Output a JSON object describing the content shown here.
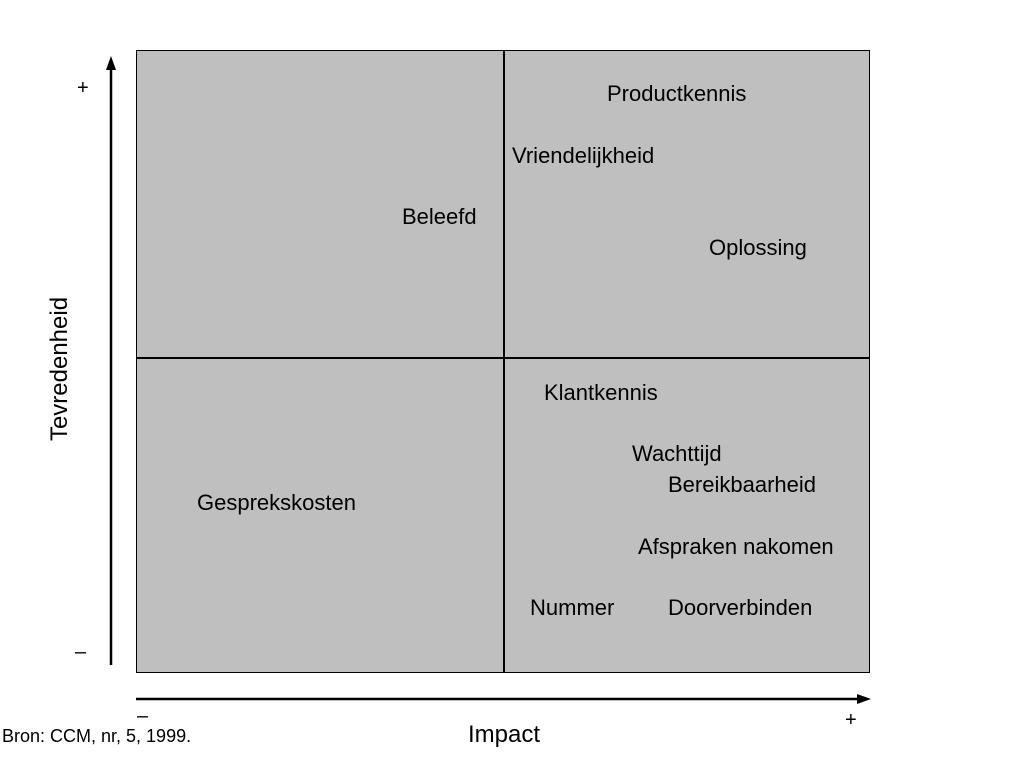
{
  "colors": {
    "quadrant_fill": "#bfbfbf",
    "lines": "#000000"
  },
  "items": {
    "productkennis": "Productkennis",
    "vriendelijkheid": "Vriendelijkheid",
    "beleefd": "Beleefd",
    "oplossing": "Oplossing",
    "klantkennis": "Klantkennis",
    "wachttijd": "Wachttijd",
    "bereikbaarheid": "Bereikbaarheid",
    "gesprekskosten": "Gesprekskosten",
    "afspraken": "Afspraken nakomen",
    "nummer": "Nummer",
    "doorverbinden": "Doorverbinden"
  },
  "axes": {
    "y_label": "Tevredenheid",
    "y_plus": "+",
    "y_minus": "–",
    "x_label": "Impact",
    "x_plus": "+",
    "x_minus": "–"
  },
  "source": "Bron: CCM, nr, 5, 1999."
}
